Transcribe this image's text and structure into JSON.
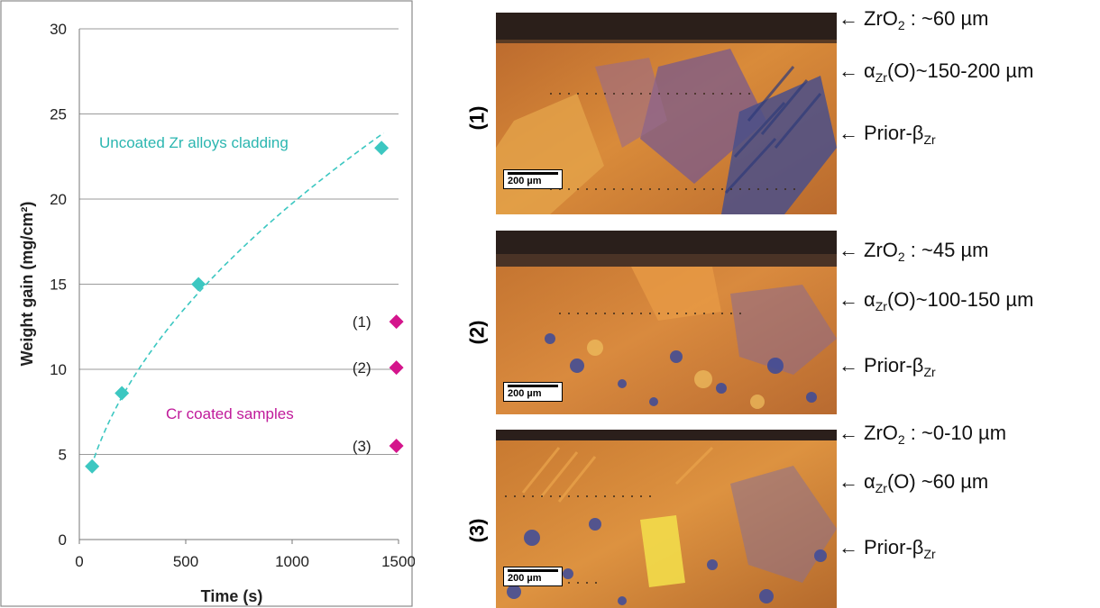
{
  "chart_data": {
    "type": "scatter",
    "xlabel": "Time (s)",
    "ylabel": "Weight gain (mg/cm²)",
    "xlim": [
      0,
      1500
    ],
    "ylim": [
      0,
      30
    ],
    "x_ticks": [
      "0",
      "500",
      "1000",
      "1500"
    ],
    "y_ticks": [
      "0",
      "5",
      "10",
      "15",
      "20",
      "25",
      "30"
    ],
    "grid": "horizontal",
    "series": [
      {
        "name": "Uncoated Zr alloys cladding",
        "color": "#3cc7c1",
        "marker": "diamond",
        "trendline": "dashed power fit",
        "points": [
          [
            60,
            4.3
          ],
          [
            200,
            8.6
          ],
          [
            560,
            15.0
          ],
          [
            1420,
            23.0
          ]
        ]
      },
      {
        "name": "Cr coated samples",
        "color": "#d4158c",
        "marker": "diamond",
        "points": [
          {
            "x": 1490,
            "y": 12.8,
            "label": "(1)"
          },
          {
            "x": 1490,
            "y": 10.1,
            "label": "(2)"
          },
          {
            "x": 1490,
            "y": 5.5,
            "label": "(3)"
          }
        ]
      }
    ]
  },
  "micrographs": [
    {
      "label": "(1)",
      "scale_bar": "200 µm",
      "layers": [
        {
          "prefix": "ZrO",
          "sub": "2",
          "suffix": " : ~60 µm"
        },
        {
          "prefix": "α",
          "sub": "Zr",
          "suffix": "(O)~150-200 µm"
        },
        {
          "prefix": "Prior-β",
          "sub": "Zr",
          "suffix": ""
        }
      ]
    },
    {
      "label": "(2)",
      "scale_bar": "200 µm",
      "layers": [
        {
          "prefix": "ZrO",
          "sub": "2",
          "suffix": " : ~45 µm"
        },
        {
          "prefix": "α",
          "sub": "Zr",
          "suffix": "(O)~100-150 µm"
        },
        {
          "prefix": "Prior-β",
          "sub": "Zr",
          "suffix": ""
        }
      ]
    },
    {
      "label": "(3)",
      "scale_bar": "200 µm",
      "layers": [
        {
          "prefix": "ZrO",
          "sub": "2",
          "suffix": " : ~0-10 µm"
        },
        {
          "prefix": "α",
          "sub": "Zr",
          "suffix": "(O) ~60 µm"
        },
        {
          "prefix": "Prior-β",
          "sub": "Zr",
          "suffix": ""
        }
      ]
    }
  ],
  "arrow": "←"
}
